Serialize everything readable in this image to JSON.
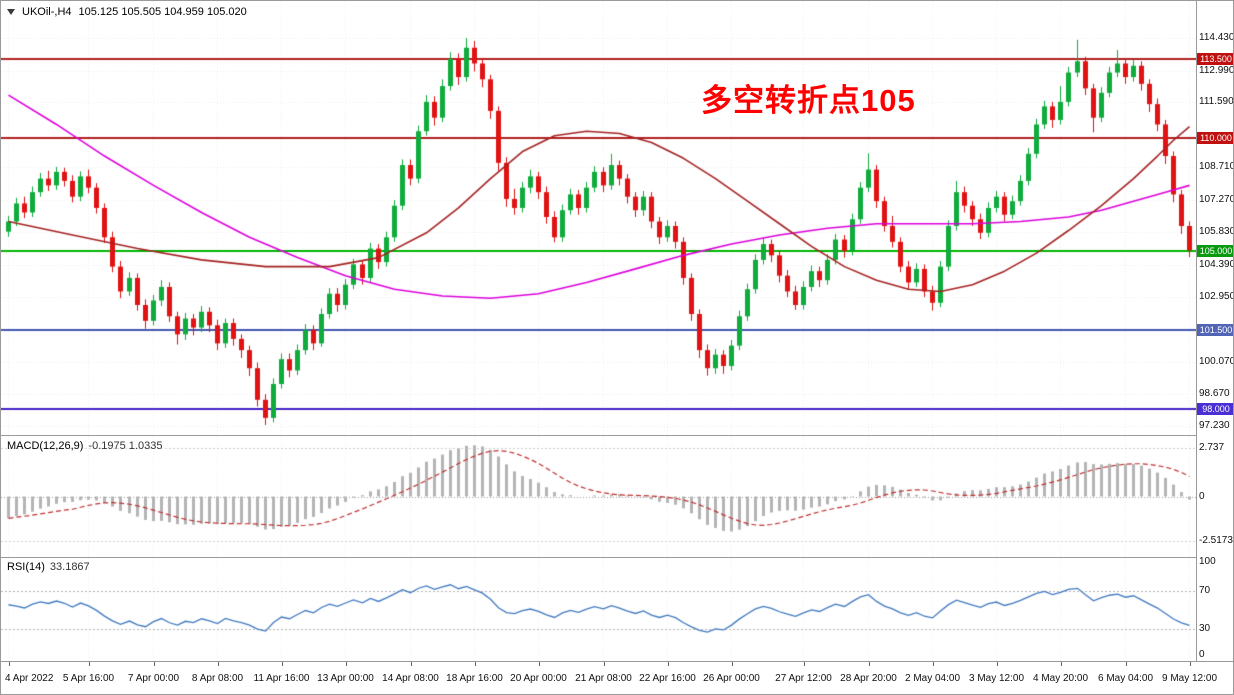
{
  "legend": {
    "symbol_period": "UKOil-,H4",
    "ohlc": "105.125 105.505 104.959 105.020"
  },
  "annotation": {
    "text": "多空转折点105",
    "color": "#ff0000"
  },
  "macd_panel": {
    "name": "MACD(12,26,9)",
    "values": "-0.1975 1.0335"
  },
  "rsi_panel": {
    "name": "RSI(14)",
    "value": "33.1867"
  },
  "chart_data": {
    "type": "candlestick",
    "symbol": "UKOil-",
    "timeframe": "H4",
    "title": "UKOil- H4 with MACD(12,26,9) and RSI(14)",
    "price_range": {
      "min": 96.84,
      "max": 116.07
    },
    "colors": {
      "up": "#0fab3c",
      "down": "#e01212",
      "macd_hist": "#b4b4b4",
      "macd_signal": "#c03030",
      "rsi_line": "#4079bf",
      "grid": "#ececec"
    },
    "price_ticks": [
      {
        "v": 114.43,
        "text": "114.430"
      },
      {
        "v": 112.99,
        "text": "112.990"
      },
      {
        "v": 111.59,
        "text": "111.590"
      },
      {
        "v": 108.71,
        "text": "108.710"
      },
      {
        "v": 107.27,
        "text": "107.270"
      },
      {
        "v": 105.83,
        "text": "105.830"
      },
      {
        "v": 104.39,
        "text": "104.390"
      },
      {
        "v": 102.95,
        "text": "102.950"
      },
      {
        "v": 100.07,
        "text": "100.070"
      },
      {
        "v": 98.67,
        "text": "98.670"
      },
      {
        "v": 97.23,
        "text": "97.230"
      }
    ],
    "badges": [
      {
        "price": 113.5,
        "text": "113.500",
        "bg": "#c01010"
      },
      {
        "price": 110.0,
        "text": "110.000",
        "bg": "#c01010"
      },
      {
        "price": 105.0,
        "text": "105.000",
        "bg": "#0a9a10"
      },
      {
        "price": 101.5,
        "text": "101.500",
        "bg": "#5264b6"
      },
      {
        "price": 98.0,
        "text": "98.000",
        "bg": "#4a2fd4"
      }
    ],
    "hlines": [
      {
        "price": 113.5,
        "color": "#b22020",
        "label": "113.500"
      },
      {
        "price": 110.0,
        "color": "#b22020",
        "label": "110.000"
      },
      {
        "price": 105.0,
        "color": "#00b400",
        "label": "105.000"
      },
      {
        "price": 101.5,
        "color": "#4356b0",
        "label": "101.500"
      },
      {
        "price": 98.0,
        "color": "#4422c8",
        "label": "98.000"
      }
    ],
    "time_labels": [
      {
        "text": "4 Apr 2022",
        "bar": 0
      },
      {
        "text": "5 Apr 16:00",
        "bar": 10
      },
      {
        "text": "7 Apr 00:00",
        "bar": 18
      },
      {
        "text": "8 Apr 08:00",
        "bar": 26
      },
      {
        "text": "11 Apr 16:00",
        "bar": 34
      },
      {
        "text": "13 Apr 00:00",
        "bar": 42
      },
      {
        "text": "14 Apr 08:00",
        "bar": 50
      },
      {
        "text": "18 Apr 16:00",
        "bar": 58
      },
      {
        "text": "20 Apr 00:00",
        "bar": 66
      },
      {
        "text": "21 Apr 08:00",
        "bar": 74
      },
      {
        "text": "22 Apr 16:00",
        "bar": 82
      },
      {
        "text": "26 Apr 00:00",
        "bar": 90
      },
      {
        "text": "27 Apr 12:00",
        "bar": 99
      },
      {
        "text": "28 Apr 20:00",
        "bar": 107
      },
      {
        "text": "2 May 04:00",
        "bar": 115
      },
      {
        "text": "3 May 12:00",
        "bar": 123
      },
      {
        "text": "4 May 20:00",
        "bar": 131
      },
      {
        "text": "6 May 04:00",
        "bar": 139
      },
      {
        "text": "9 May 12:00",
        "bar": 147
      }
    ],
    "candles": [
      [
        105.85,
        106.55,
        105.62,
        106.3
      ],
      [
        106.3,
        107.35,
        106.1,
        107.1
      ],
      [
        107.1,
        107.4,
        106.45,
        106.7
      ],
      [
        106.7,
        107.85,
        106.5,
        107.6
      ],
      [
        107.6,
        108.45,
        107.4,
        108.2
      ],
      [
        108.2,
        108.55,
        107.65,
        107.9
      ],
      [
        107.9,
        108.72,
        107.7,
        108.5
      ],
      [
        108.5,
        108.68,
        107.85,
        108.1
      ],
      [
        108.1,
        108.35,
        107.15,
        107.4
      ],
      [
        107.4,
        108.52,
        107.2,
        108.3
      ],
      [
        108.3,
        108.6,
        107.55,
        107.8
      ],
      [
        107.8,
        108.0,
        106.65,
        106.9
      ],
      [
        106.9,
        107.1,
        105.35,
        105.6
      ],
      [
        105.6,
        105.85,
        104.05,
        104.3
      ],
      [
        104.3,
        104.55,
        102.9,
        103.2
      ],
      [
        103.2,
        104.05,
        103.0,
        103.8
      ],
      [
        103.8,
        104.0,
        102.35,
        102.6
      ],
      [
        102.6,
        102.85,
        101.55,
        101.9
      ],
      [
        101.9,
        103.05,
        101.7,
        102.8
      ],
      [
        102.8,
        103.7,
        102.55,
        103.4
      ],
      [
        103.4,
        103.6,
        101.85,
        102.1
      ],
      [
        102.1,
        102.3,
        100.85,
        101.3
      ],
      [
        101.3,
        102.25,
        101.05,
        102.0
      ],
      [
        102.0,
        102.2,
        101.25,
        101.6
      ],
      [
        101.6,
        102.55,
        101.4,
        102.3
      ],
      [
        102.3,
        102.5,
        101.4,
        101.7
      ],
      [
        101.7,
        101.95,
        100.6,
        100.9
      ],
      [
        100.9,
        102.0,
        100.7,
        101.8
      ],
      [
        101.8,
        102.0,
        100.8,
        101.1
      ],
      [
        101.1,
        101.3,
        100.25,
        100.6
      ],
      [
        100.6,
        100.8,
        99.45,
        99.8
      ],
      [
        99.8,
        100.05,
        98.1,
        98.4
      ],
      [
        98.4,
        98.65,
        97.28,
        97.6
      ],
      [
        97.6,
        99.35,
        97.4,
        99.1
      ],
      [
        99.1,
        100.45,
        98.9,
        100.2
      ],
      [
        100.2,
        100.45,
        99.4,
        99.7
      ],
      [
        99.7,
        100.85,
        99.5,
        100.6
      ],
      [
        100.6,
        101.75,
        100.4,
        101.5
      ],
      [
        101.5,
        101.7,
        100.6,
        100.9
      ],
      [
        100.9,
        102.45,
        100.75,
        102.2
      ],
      [
        102.2,
        103.35,
        102.0,
        103.1
      ],
      [
        103.1,
        103.35,
        102.3,
        102.6
      ],
      [
        102.6,
        103.75,
        102.4,
        103.5
      ],
      [
        103.5,
        104.65,
        103.3,
        104.4
      ],
      [
        104.4,
        104.6,
        103.5,
        103.8
      ],
      [
        103.8,
        105.35,
        103.6,
        105.1
      ],
      [
        105.1,
        105.3,
        104.2,
        104.5
      ],
      [
        104.5,
        105.85,
        104.3,
        105.6
      ],
      [
        105.6,
        107.25,
        105.4,
        107.0
      ],
      [
        107.0,
        109.05,
        106.8,
        108.8
      ],
      [
        108.8,
        109.05,
        107.9,
        108.2
      ],
      [
        108.2,
        110.55,
        108.0,
        110.3
      ],
      [
        110.3,
        111.9,
        110.1,
        111.6
      ],
      [
        111.6,
        111.85,
        110.55,
        110.9
      ],
      [
        110.9,
        112.6,
        110.7,
        112.3
      ],
      [
        112.3,
        113.8,
        112.1,
        113.5
      ],
      [
        113.5,
        113.75,
        112.35,
        112.7
      ],
      [
        112.7,
        114.43,
        112.5,
        114.0
      ],
      [
        114.0,
        114.3,
        112.95,
        113.3
      ],
      [
        113.3,
        113.55,
        112.25,
        112.6
      ],
      [
        112.6,
        112.8,
        110.85,
        111.2
      ],
      [
        111.2,
        111.4,
        108.55,
        108.9
      ],
      [
        108.9,
        109.15,
        106.95,
        107.3
      ],
      [
        107.3,
        107.75,
        106.6,
        106.9
      ],
      [
        106.9,
        108.05,
        106.7,
        107.8
      ],
      [
        107.8,
        108.6,
        107.55,
        108.3
      ],
      [
        108.3,
        108.5,
        107.3,
        107.6
      ],
      [
        107.6,
        107.85,
        106.2,
        106.5
      ],
      [
        106.5,
        106.75,
        105.38,
        105.6
      ],
      [
        105.6,
        107.05,
        105.4,
        106.8
      ],
      [
        106.8,
        107.75,
        106.6,
        107.5
      ],
      [
        107.5,
        107.7,
        106.6,
        106.9
      ],
      [
        106.9,
        108.05,
        106.7,
        107.8
      ],
      [
        107.8,
        108.75,
        107.6,
        108.5
      ],
      [
        108.5,
        108.7,
        107.6,
        107.9
      ],
      [
        107.9,
        109.3,
        107.7,
        108.8
      ],
      [
        108.8,
        109.0,
        107.9,
        108.2
      ],
      [
        108.2,
        108.4,
        107.1,
        107.4
      ],
      [
        107.4,
        107.6,
        106.5,
        106.8
      ],
      [
        106.8,
        107.65,
        106.55,
        107.4
      ],
      [
        107.4,
        107.6,
        106.0,
        106.3
      ],
      [
        106.3,
        106.5,
        105.3,
        105.6
      ],
      [
        105.6,
        106.35,
        105.4,
        106.1
      ],
      [
        106.1,
        106.3,
        105.1,
        105.4
      ],
      [
        105.4,
        105.6,
        103.5,
        103.8
      ],
      [
        103.8,
        104.0,
        101.9,
        102.2
      ],
      [
        102.2,
        102.4,
        100.25,
        100.6
      ],
      [
        100.6,
        100.85,
        99.47,
        99.8
      ],
      [
        99.8,
        100.65,
        99.55,
        100.4
      ],
      [
        100.4,
        100.6,
        99.55,
        99.9
      ],
      [
        99.9,
        101.05,
        99.7,
        100.8
      ],
      [
        100.8,
        102.35,
        100.6,
        102.1
      ],
      [
        102.1,
        103.55,
        101.9,
        103.3
      ],
      [
        103.3,
        104.85,
        103.1,
        104.6
      ],
      [
        104.6,
        105.55,
        104.4,
        105.3
      ],
      [
        105.3,
        105.5,
        104.5,
        104.8
      ],
      [
        104.8,
        105.0,
        103.6,
        103.9
      ],
      [
        103.9,
        104.15,
        102.95,
        103.2
      ],
      [
        103.2,
        103.45,
        102.38,
        102.6
      ],
      [
        102.6,
        103.65,
        102.4,
        103.4
      ],
      [
        103.4,
        104.35,
        103.2,
        104.1
      ],
      [
        104.1,
        104.3,
        103.4,
        103.7
      ],
      [
        103.7,
        104.85,
        103.5,
        104.6
      ],
      [
        104.6,
        105.75,
        104.4,
        105.5
      ],
      [
        105.5,
        105.7,
        104.7,
        105.0
      ],
      [
        105.0,
        106.65,
        104.8,
        106.4
      ],
      [
        106.4,
        108.05,
        106.2,
        107.8
      ],
      [
        107.8,
        109.32,
        107.6,
        108.6
      ],
      [
        108.6,
        108.8,
        106.9,
        107.2
      ],
      [
        107.2,
        107.4,
        105.85,
        106.1
      ],
      [
        106.1,
        106.55,
        105.15,
        105.4
      ],
      [
        105.4,
        105.6,
        104.05,
        104.3
      ],
      [
        104.3,
        104.55,
        103.3,
        103.6
      ],
      [
        103.6,
        104.45,
        103.4,
        104.2
      ],
      [
        104.2,
        104.4,
        102.95,
        103.2
      ],
      [
        103.2,
        103.45,
        102.35,
        102.7
      ],
      [
        102.7,
        104.55,
        102.5,
        104.3
      ],
      [
        104.3,
        106.35,
        104.1,
        106.1
      ],
      [
        106.1,
        108.1,
        105.9,
        107.6
      ],
      [
        107.6,
        107.85,
        106.7,
        107.0
      ],
      [
        107.0,
        107.2,
        106.1,
        106.4
      ],
      [
        106.4,
        106.65,
        105.52,
        105.8
      ],
      [
        105.8,
        107.15,
        105.6,
        106.9
      ],
      [
        106.9,
        107.65,
        106.7,
        107.4
      ],
      [
        107.4,
        107.6,
        106.3,
        106.6
      ],
      [
        106.6,
        107.45,
        106.4,
        107.2
      ],
      [
        107.2,
        108.35,
        107.0,
        108.1
      ],
      [
        108.1,
        109.55,
        107.9,
        109.3
      ],
      [
        109.3,
        110.85,
        109.1,
        110.6
      ],
      [
        110.6,
        111.65,
        110.4,
        111.4
      ],
      [
        111.4,
        111.6,
        110.45,
        110.8
      ],
      [
        110.8,
        112.3,
        110.6,
        111.6
      ],
      [
        111.6,
        113.15,
        111.4,
        112.9
      ],
      [
        112.9,
        114.35,
        112.7,
        113.4
      ],
      [
        113.4,
        113.6,
        111.9,
        112.2
      ],
      [
        112.2,
        112.4,
        110.25,
        110.9
      ],
      [
        110.9,
        112.25,
        110.7,
        112.0
      ],
      [
        112.0,
        113.15,
        111.8,
        112.9
      ],
      [
        112.9,
        113.9,
        112.7,
        113.3
      ],
      [
        113.3,
        113.55,
        112.4,
        112.7
      ],
      [
        112.7,
        113.45,
        112.5,
        113.2
      ],
      [
        113.2,
        113.4,
        112.1,
        112.4
      ],
      [
        112.4,
        112.6,
        111.15,
        111.5
      ],
      [
        111.5,
        111.75,
        110.3,
        110.6
      ],
      [
        110.6,
        110.8,
        108.85,
        109.2
      ],
      [
        109.2,
        109.4,
        107.15,
        107.5
      ],
      [
        107.5,
        107.7,
        105.75,
        106.1
      ],
      [
        106.1,
        106.3,
        104.72,
        105.02
      ]
    ],
    "ma_lines": [
      {
        "name": "ma-slow-magenta",
        "color": "#dd00dd",
        "points": [
          [
            0,
            111.9
          ],
          [
            6,
            110.6
          ],
          [
            12,
            109.2
          ],
          [
            18,
            107.9
          ],
          [
            24,
            106.7
          ],
          [
            30,
            105.6
          ],
          [
            36,
            104.7
          ],
          [
            42,
            103.9
          ],
          [
            48,
            103.3
          ],
          [
            54,
            103.0
          ],
          [
            60,
            102.9
          ],
          [
            66,
            103.1
          ],
          [
            72,
            103.6
          ],
          [
            78,
            104.2
          ],
          [
            84,
            104.8
          ],
          [
            90,
            105.3
          ],
          [
            96,
            105.7
          ],
          [
            102,
            106.0
          ],
          [
            108,
            106.2
          ],
          [
            114,
            106.2
          ],
          [
            120,
            106.2
          ],
          [
            126,
            106.3
          ],
          [
            132,
            106.5
          ],
          [
            136,
            106.8
          ],
          [
            140,
            107.2
          ],
          [
            144,
            107.6
          ],
          [
            147,
            107.9
          ]
        ]
      },
      {
        "name": "ma-mid-darkred",
        "color": "#a52222",
        "points": [
          [
            0,
            106.3
          ],
          [
            8,
            105.7
          ],
          [
            16,
            105.1
          ],
          [
            24,
            104.6
          ],
          [
            32,
            104.3
          ],
          [
            40,
            104.3
          ],
          [
            46,
            104.7
          ],
          [
            52,
            105.8
          ],
          [
            56,
            106.9
          ],
          [
            60,
            108.2
          ],
          [
            64,
            109.4
          ],
          [
            68,
            110.1
          ],
          [
            72,
            110.3
          ],
          [
            76,
            110.2
          ],
          [
            80,
            109.8
          ],
          [
            84,
            109.1
          ],
          [
            88,
            108.2
          ],
          [
            92,
            107.2
          ],
          [
            96,
            106.2
          ],
          [
            100,
            105.2
          ],
          [
            104,
            104.3
          ],
          [
            108,
            103.7
          ],
          [
            112,
            103.3
          ],
          [
            116,
            103.2
          ],
          [
            120,
            103.5
          ],
          [
            124,
            104.1
          ],
          [
            128,
            104.9
          ],
          [
            132,
            105.9
          ],
          [
            136,
            107.0
          ],
          [
            140,
            108.2
          ],
          [
            143,
            109.2
          ],
          [
            145,
            109.9
          ],
          [
            147,
            110.5
          ]
        ]
      }
    ],
    "macd": {
      "fast": 12,
      "slow": 26,
      "signal": 9,
      "current_main": -0.1975,
      "current_signal": 1.0335,
      "seed_fast": 106.6,
      "seed_slow": 107.9,
      "plot_range": [
        -3.4,
        3.4
      ],
      "axis": [
        {
          "v": 2.737,
          "text": "2.737"
        },
        {
          "v": 0,
          "text": "0"
        },
        {
          "v": -2.5173,
          "text": "-2.5173"
        }
      ]
    },
    "rsi": {
      "period": 14,
      "current": 33.1867,
      "levels": [
        70,
        30
      ],
      "plot_range": [
        0,
        100
      ],
      "axis": [
        {
          "v": 100,
          "text": "100"
        },
        {
          "v": 70,
          "text": "70"
        },
        {
          "v": 30,
          "text": "30"
        },
        {
          "v": 0,
          "text": "0"
        }
      ]
    }
  }
}
